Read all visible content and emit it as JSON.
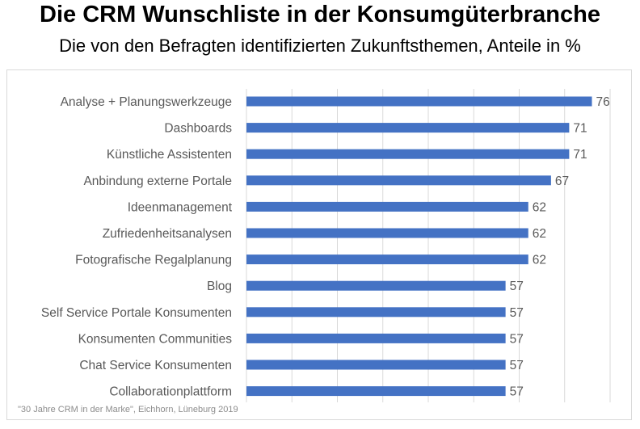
{
  "header": {
    "title": "Die CRM Wunschliste in der Konsumgüterbranche",
    "subtitle": "Die von den Befragten identifizierten Zukunftsthemen, Anteile in %"
  },
  "source": "\"30 Jahre CRM in der Marke\", Eichhorn, Lüneburg 2019",
  "colors": {
    "bar": "#4472c4",
    "grid": "#d9d9d9",
    "label": "#595959"
  },
  "chart_data": {
    "type": "bar",
    "orientation": "horizontal",
    "title": "Die CRM Wunschliste in der Konsumgüterbranche",
    "subtitle": "Die von den Befragten identifizierten Zukunftsthemen, Anteile in %",
    "xlabel": "",
    "ylabel": "",
    "xlim": [
      0,
      80
    ],
    "grid": true,
    "legend": "none",
    "categories": [
      "Analyse + Planungswerkzeuge",
      "Dashboards",
      "Künstliche Assistenten",
      "Anbindung externe Portale",
      "Ideenmanagement",
      "Zufriedenheitsanalysen",
      "Fotografische Regalplanung",
      "Blog",
      "Self Service Portale Konsumenten",
      "Konsumenten Communities",
      "Chat Service Konsumenten",
      "Collaborationplattform"
    ],
    "values": [
      76,
      71,
      71,
      67,
      62,
      62,
      62,
      57,
      57,
      57,
      57,
      57
    ]
  }
}
